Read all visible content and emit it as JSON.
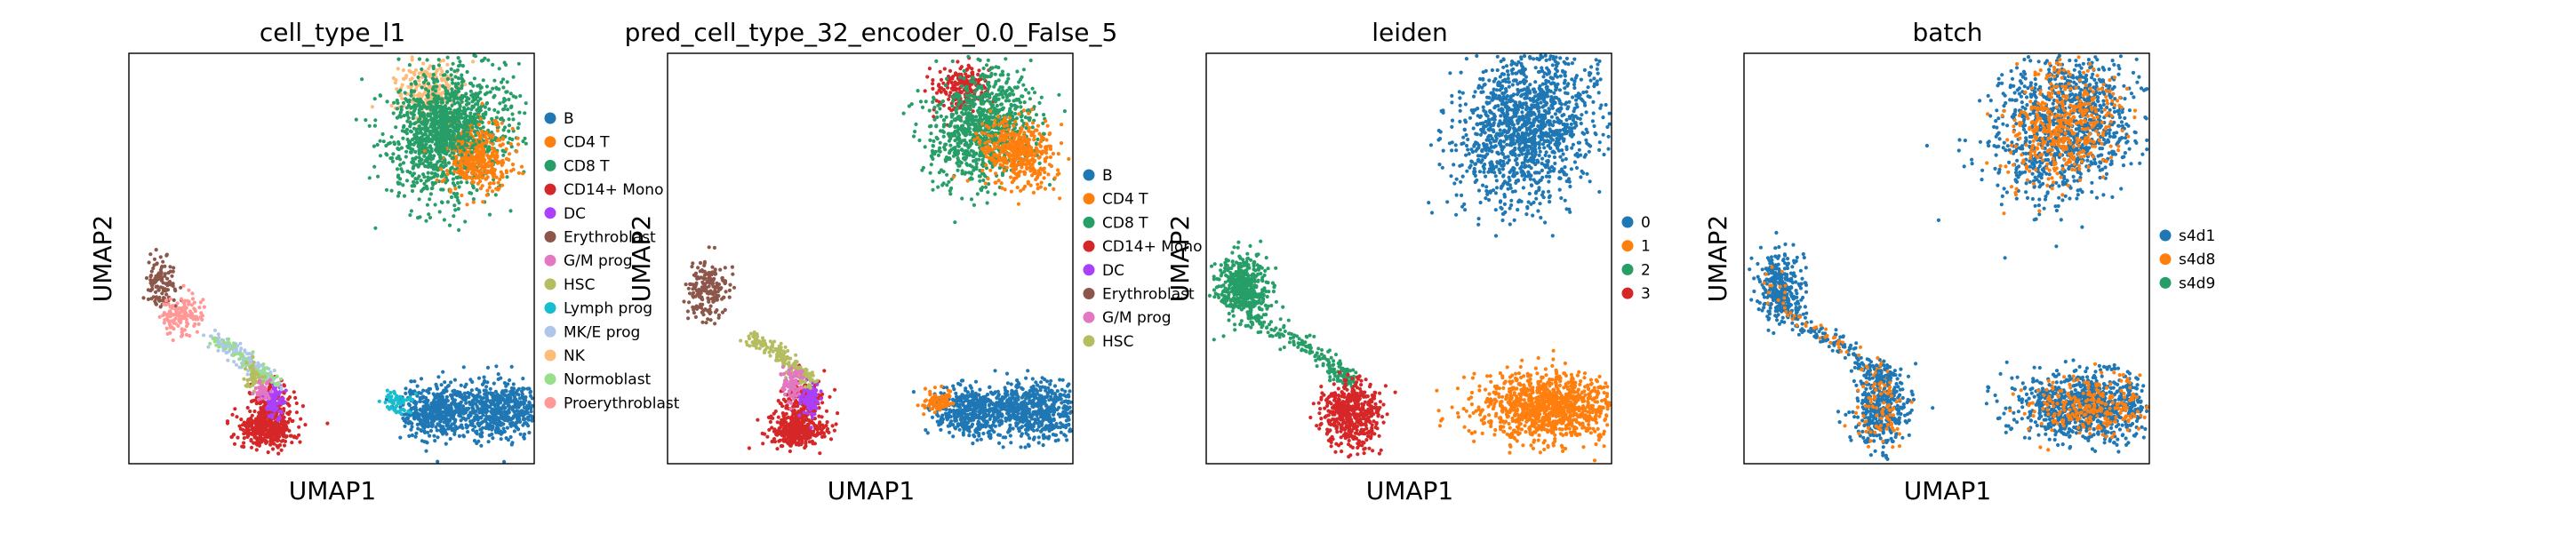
{
  "chart_data": [
    {
      "type": "scatter",
      "title": "cell_type_l1",
      "xlabel": "UMAP1",
      "ylabel": "UMAP2",
      "grid": false,
      "legend_placement": "right",
      "series": [
        {
          "name": "B",
          "color": "#1f77b4"
        },
        {
          "name": "CD4 T",
          "color": "#ff7f0e"
        },
        {
          "name": "CD8 T",
          "color": "#279e68"
        },
        {
          "name": "CD14+ Mono",
          "color": "#d62728"
        },
        {
          "name": "DC",
          "color": "#aa40fc"
        },
        {
          "name": "Erythroblast",
          "color": "#8c564b"
        },
        {
          "name": "G/M prog",
          "color": "#e377c2"
        },
        {
          "name": "HSC",
          "color": "#b5bd61"
        },
        {
          "name": "Lymph prog",
          "color": "#17becf"
        },
        {
          "name": "MK/E prog",
          "color": "#aec7e8"
        },
        {
          "name": "NK",
          "color": "#ffbb78"
        },
        {
          "name": "Normoblast",
          "color": "#98df8a"
        },
        {
          "name": "Proerythroblast",
          "color": "#ff9896"
        }
      ]
    },
    {
      "type": "scatter",
      "title": "pred_cell_type_32_encoder_0.0_False_5",
      "xlabel": "UMAP1",
      "ylabel": "UMAP2",
      "grid": false,
      "legend_placement": "right",
      "series": [
        {
          "name": "B",
          "color": "#1f77b4"
        },
        {
          "name": "CD4 T",
          "color": "#ff7f0e"
        },
        {
          "name": "CD8 T",
          "color": "#279e68"
        },
        {
          "name": "CD14+ Mono",
          "color": "#d62728"
        },
        {
          "name": "DC",
          "color": "#aa40fc"
        },
        {
          "name": "Erythroblast",
          "color": "#8c564b"
        },
        {
          "name": "G/M prog",
          "color": "#e377c2"
        },
        {
          "name": "HSC",
          "color": "#b5bd61"
        }
      ]
    },
    {
      "type": "scatter",
      "title": "leiden",
      "xlabel": "UMAP1",
      "ylabel": "UMAP2",
      "grid": false,
      "legend_placement": "right",
      "series": [
        {
          "name": "0",
          "color": "#1f77b4"
        },
        {
          "name": "1",
          "color": "#ff7f0e"
        },
        {
          "name": "2",
          "color": "#279e68"
        },
        {
          "name": "3",
          "color": "#d62728"
        }
      ]
    },
    {
      "type": "scatter",
      "title": "batch",
      "xlabel": "UMAP1",
      "ylabel": "UMAP2",
      "grid": false,
      "legend_placement": "right",
      "series": [
        {
          "name": "s4d1",
          "color": "#1f77b4"
        },
        {
          "name": "s4d8",
          "color": "#ff7f0e"
        },
        {
          "name": "s4d9",
          "color": "#279e68"
        }
      ]
    }
  ]
}
